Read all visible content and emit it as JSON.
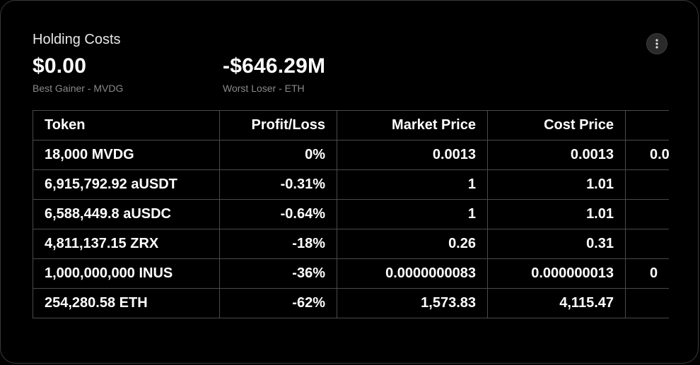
{
  "card": {
    "title": "Holding Costs",
    "menu_icon": "more-vertical-icon"
  },
  "stats": {
    "best": {
      "value": "$0.00",
      "label": "Best Gainer - MVDG"
    },
    "worst": {
      "value": "-$646.29M",
      "label": "Worst Loser - ETH"
    }
  },
  "table": {
    "headers": [
      "Token",
      "Profit/Loss",
      "Market Price",
      "Cost Price",
      ""
    ],
    "rows": [
      {
        "token": "18,000 MVDG",
        "pl": "0%",
        "market": "0.0013",
        "cost": "0.0013",
        "extra": "0.0"
      },
      {
        "token": "6,915,792.92 aUSDT",
        "pl": "-0.31%",
        "market": "1",
        "cost": "1.01",
        "extra": ""
      },
      {
        "token": "6,588,449.8 aUSDC",
        "pl": "-0.64%",
        "market": "1",
        "cost": "1.01",
        "extra": ""
      },
      {
        "token": "4,811,137.15 ZRX",
        "pl": "-18%",
        "market": "0.26",
        "cost": "0.31",
        "extra": ""
      },
      {
        "token": "1,000,000,000 INUS",
        "pl": "-36%",
        "market": "0.0000000083",
        "cost": "0.000000013",
        "extra": "0"
      },
      {
        "token": "254,280.58 ETH",
        "pl": "-62%",
        "market": "1,573.83",
        "cost": "4,115.47",
        "extra": ""
      }
    ]
  }
}
